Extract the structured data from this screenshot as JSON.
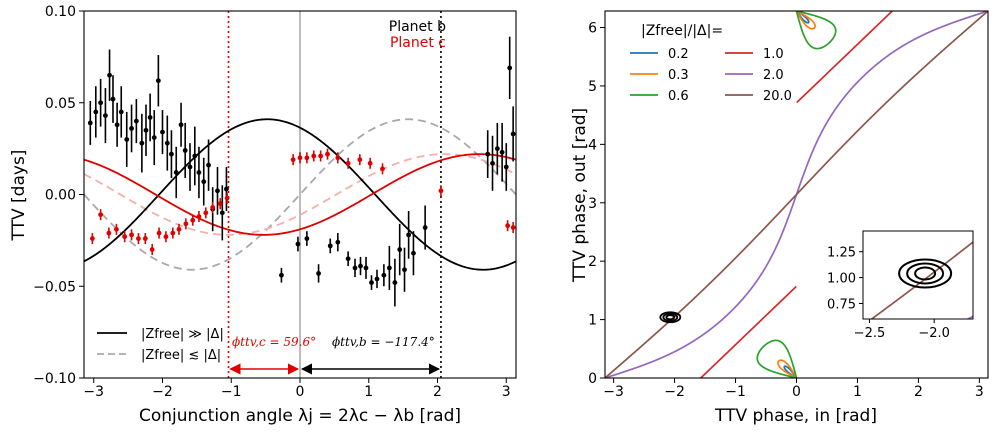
{
  "chart_data": [
    {
      "type": "scatter",
      "xlabel": "Conjunction angle λj = 2λc − λb [rad]",
      "ylabel": "TTV [days]",
      "xlim": [
        -3.14159,
        3.14159
      ],
      "ylim": [
        -0.1,
        0.1
      ],
      "x_ticks": [
        "−3",
        "−2",
        "−1",
        "0",
        "1",
        "2",
        "3"
      ],
      "x_tick_values": [
        -3,
        -2,
        -1,
        0,
        1,
        2,
        3
      ],
      "y_ticks": [
        "−0.10",
        "−0.05",
        "0.00",
        "0.05",
        "0.10"
      ],
      "y_tick_values": [
        -0.1,
        -0.05,
        0,
        0.05,
        0.1
      ],
      "series_labels": {
        "b": "Planet b",
        "c": "Planet c"
      },
      "colors": {
        "b": "#000000",
        "c": "#e00000",
        "b_dashed": "#a9a9a9",
        "c_dashed": "#f5b0aa",
        "vline_zero": "#bbbbbb"
      },
      "legend": {
        "position": "lower-left",
        "entries": [
          {
            "label": "|Zfree| ≫ |Δ|",
            "style": "solid",
            "color": "#000000"
          },
          {
            "label": "|Zfree| ≲ |Δ|",
            "style": "dashed",
            "color": "#a9a9a9"
          }
        ]
      },
      "model_curves": {
        "b_solid": {
          "amplitude": 0.041,
          "phase_deg": -117.4
        },
        "c_solid": {
          "amplitude": 0.022,
          "phase_deg": 59.6
        },
        "b_dashed": {
          "amplitude": 0.041,
          "peak_at": 1.57
        },
        "c_dashed": {
          "amplitude": 0.022,
          "peak_at": 2.1
        }
      },
      "vlines": [
        {
          "x": -1.04,
          "color": "#e00000",
          "style": "dotted"
        },
        {
          "x": 0,
          "color": "#bbbbbb",
          "style": "solid"
        },
        {
          "x": 2.05,
          "color": "#000000",
          "style": "dotted"
        }
      ],
      "annotations": {
        "phi_c": {
          "label": "ϕttv,c = 59.6°",
          "from": -1.04,
          "to": 0,
          "color": "#e00000"
        },
        "phi_b": {
          "label": "ϕttv,b = −117.4°",
          "from": 0,
          "to": 2.05,
          "color": "#000000"
        }
      },
      "planet_b_points": [
        {
          "x": -3.05,
          "y": 0.039,
          "e": 0.012
        },
        {
          "x": -2.97,
          "y": 0.045,
          "e": 0.014
        },
        {
          "x": -2.9,
          "y": 0.05,
          "e": 0.013
        },
        {
          "x": -2.83,
          "y": 0.043,
          "e": 0.015
        },
        {
          "x": -2.77,
          "y": 0.065,
          "e": 0.014
        },
        {
          "x": -2.72,
          "y": 0.052,
          "e": 0.013
        },
        {
          "x": -2.66,
          "y": 0.038,
          "e": 0.012
        },
        {
          "x": -2.6,
          "y": 0.045,
          "e": 0.014
        },
        {
          "x": -2.52,
          "y": 0.03,
          "e": 0.015
        },
        {
          "x": -2.45,
          "y": 0.036,
          "e": 0.013
        },
        {
          "x": -2.38,
          "y": 0.04,
          "e": 0.012
        },
        {
          "x": -2.3,
          "y": 0.028,
          "e": 0.016
        },
        {
          "x": -2.24,
          "y": 0.035,
          "e": 0.014
        },
        {
          "x": -2.18,
          "y": 0.042,
          "e": 0.013
        },
        {
          "x": -2.12,
          "y": 0.031,
          "e": 0.015
        },
        {
          "x": -2.06,
          "y": 0.062,
          "e": 0.014
        },
        {
          "x": -2.0,
          "y": 0.034,
          "e": 0.012
        },
        {
          "x": -1.93,
          "y": 0.028,
          "e": 0.015
        },
        {
          "x": -1.87,
          "y": 0.022,
          "e": 0.013
        },
        {
          "x": -1.8,
          "y": 0.012,
          "e": 0.014
        },
        {
          "x": -1.73,
          "y": 0.038,
          "e": 0.012
        },
        {
          "x": -1.67,
          "y": 0.024,
          "e": 0.015
        },
        {
          "x": -1.6,
          "y": 0.015,
          "e": 0.013
        },
        {
          "x": -1.53,
          "y": 0.021,
          "e": 0.016
        },
        {
          "x": -1.47,
          "y": 0.012,
          "e": 0.014
        },
        {
          "x": -1.4,
          "y": 0.007,
          "e": 0.013
        },
        {
          "x": -1.33,
          "y": 0.016,
          "e": 0.014
        },
        {
          "x": -1.27,
          "y": -0.008,
          "e": 0.012
        },
        {
          "x": -1.2,
          "y": 0.002,
          "e": 0.013
        },
        {
          "x": -1.13,
          "y": -0.01,
          "e": 0.015
        },
        {
          "x": -1.07,
          "y": 0.003,
          "e": 0.012
        },
        {
          "x": -0.27,
          "y": -0.044,
          "e": 0.004
        },
        {
          "x": -0.03,
          "y": -0.027,
          "e": 0.004
        },
        {
          "x": 0.1,
          "y": -0.024,
          "e": 0.004
        },
        {
          "x": 0.27,
          "y": -0.043,
          "e": 0.005
        },
        {
          "x": 0.44,
          "y": -0.028,
          "e": 0.004
        },
        {
          "x": 0.55,
          "y": -0.026,
          "e": 0.005
        },
        {
          "x": 0.7,
          "y": -0.035,
          "e": 0.004
        },
        {
          "x": 0.8,
          "y": -0.04,
          "e": 0.005
        },
        {
          "x": 0.88,
          "y": -0.039,
          "e": 0.005
        },
        {
          "x": 0.96,
          "y": -0.04,
          "e": 0.006
        },
        {
          "x": 1.04,
          "y": -0.048,
          "e": 0.004
        },
        {
          "x": 1.12,
          "y": -0.046,
          "e": 0.005
        },
        {
          "x": 1.22,
          "y": -0.044,
          "e": 0.006
        },
        {
          "x": 1.3,
          "y": -0.04,
          "e": 0.012
        },
        {
          "x": 1.38,
          "y": -0.048,
          "e": 0.013
        },
        {
          "x": 1.45,
          "y": -0.03,
          "e": 0.014
        },
        {
          "x": 1.52,
          "y": -0.041,
          "e": 0.012
        },
        {
          "x": 1.58,
          "y": -0.022,
          "e": 0.013
        },
        {
          "x": 1.65,
          "y": -0.032,
          "e": 0.012
        },
        {
          "x": 1.82,
          "y": -0.018,
          "e": 0.012
        },
        {
          "x": 2.73,
          "y": 0.022,
          "e": 0.013
        },
        {
          "x": 2.8,
          "y": 0.017,
          "e": 0.015
        },
        {
          "x": 2.87,
          "y": 0.025,
          "e": 0.014
        },
        {
          "x": 2.94,
          "y": 0.023,
          "e": 0.016
        },
        {
          "x": 3.0,
          "y": 0.015,
          "e": 0.013
        },
        {
          "x": 3.05,
          "y": 0.069,
          "e": 0.017
        },
        {
          "x": 3.1,
          "y": 0.033,
          "e": 0.015
        }
      ],
      "planet_c_points": [
        {
          "x": -3.02,
          "y": -0.024,
          "e": 0.003
        },
        {
          "x": -2.9,
          "y": -0.011,
          "e": 0.003
        },
        {
          "x": -2.78,
          "y": -0.021,
          "e": 0.003
        },
        {
          "x": -2.67,
          "y": -0.019,
          "e": 0.003
        },
        {
          "x": -2.55,
          "y": -0.023,
          "e": 0.003
        },
        {
          "x": -2.45,
          "y": -0.022,
          "e": 0.003
        },
        {
          "x": -2.35,
          "y": -0.024,
          "e": 0.003
        },
        {
          "x": -2.25,
          "y": -0.024,
          "e": 0.003
        },
        {
          "x": -2.15,
          "y": -0.03,
          "e": 0.003
        },
        {
          "x": -2.05,
          "y": -0.021,
          "e": 0.003
        },
        {
          "x": -1.95,
          "y": -0.023,
          "e": 0.003
        },
        {
          "x": -1.85,
          "y": -0.021,
          "e": 0.003
        },
        {
          "x": -1.76,
          "y": -0.019,
          "e": 0.003
        },
        {
          "x": -1.66,
          "y": -0.016,
          "e": 0.003
        },
        {
          "x": -1.56,
          "y": -0.014,
          "e": 0.003
        },
        {
          "x": -1.47,
          "y": -0.012,
          "e": 0.003
        },
        {
          "x": -1.37,
          "y": -0.01,
          "e": 0.003
        },
        {
          "x": -1.27,
          "y": -0.007,
          "e": 0.003
        },
        {
          "x": -1.16,
          "y": -0.005,
          "e": 0.003
        },
        {
          "x": -1.06,
          "y": -0.002,
          "e": 0.003
        },
        {
          "x": -0.1,
          "y": 0.019,
          "e": 0.003
        },
        {
          "x": 0.0,
          "y": 0.02,
          "e": 0.003
        },
        {
          "x": 0.1,
          "y": 0.02,
          "e": 0.003
        },
        {
          "x": 0.2,
          "y": 0.021,
          "e": 0.003
        },
        {
          "x": 0.3,
          "y": 0.021,
          "e": 0.003
        },
        {
          "x": 0.4,
          "y": 0.022,
          "e": 0.003
        },
        {
          "x": 0.55,
          "y": 0.02,
          "e": 0.003
        },
        {
          "x": 0.7,
          "y": 0.017,
          "e": 0.003
        },
        {
          "x": 0.87,
          "y": 0.019,
          "e": 0.003
        },
        {
          "x": 1.02,
          "y": 0.017,
          "e": 0.003
        },
        {
          "x": 1.2,
          "y": 0.014,
          "e": 0.003
        },
        {
          "x": 2.05,
          "y": 0.002,
          "e": 0.003
        },
        {
          "x": 3.02,
          "y": -0.017,
          "e": 0.003
        },
        {
          "x": 3.1,
          "y": -0.018,
          "e": 0.003
        }
      ]
    },
    {
      "type": "line",
      "xlabel": "TTV phase, in [rad]",
      "ylabel": "TTV phase, out [rad]",
      "xlim": [
        -3.14159,
        3.14159
      ],
      "ylim": [
        0,
        6.28318
      ],
      "x_ticks": [
        "−3",
        "−2",
        "−1",
        "0",
        "1",
        "2",
        "3"
      ],
      "x_tick_values": [
        -3,
        -2,
        -1,
        0,
        1,
        2,
        3
      ],
      "y_ticks": [
        "0",
        "1",
        "2",
        "3",
        "4",
        "5",
        "6"
      ],
      "y_tick_values": [
        0,
        1,
        2,
        3,
        4,
        5,
        6
      ],
      "legend": {
        "title": "|Zfree|/|Δ|=",
        "position": "upper-left",
        "columns": 2
      },
      "series": [
        {
          "name": "0.2",
          "ratio": 0.2,
          "color": "#1f77b4"
        },
        {
          "name": "0.3",
          "ratio": 0.3,
          "color": "#ff7f0e"
        },
        {
          "name": "0.6",
          "ratio": 0.6,
          "color": "#2ca02c"
        },
        {
          "name": "1.0",
          "ratio": 1.0,
          "color": "#d62728"
        },
        {
          "name": "2.0",
          "ratio": 2.0,
          "color": "#9467bd"
        },
        {
          "name": "20.0",
          "ratio": 20.0,
          "color": "#8c564b"
        }
      ],
      "contour_center": [
        -2.07,
        1.04
      ],
      "contour_levels": 3,
      "inset": {
        "xlim": [
          -2.55,
          -1.7
        ],
        "ylim": [
          0.6,
          1.45
        ],
        "x_ticks": [
          "−2.5",
          "−2.0"
        ],
        "x_tick_values": [
          -2.5,
          -2.0
        ],
        "y_ticks": [
          "0.75",
          "1.00",
          "1.25"
        ],
        "y_tick_values": [
          0.75,
          1.0,
          1.25
        ]
      }
    }
  ]
}
